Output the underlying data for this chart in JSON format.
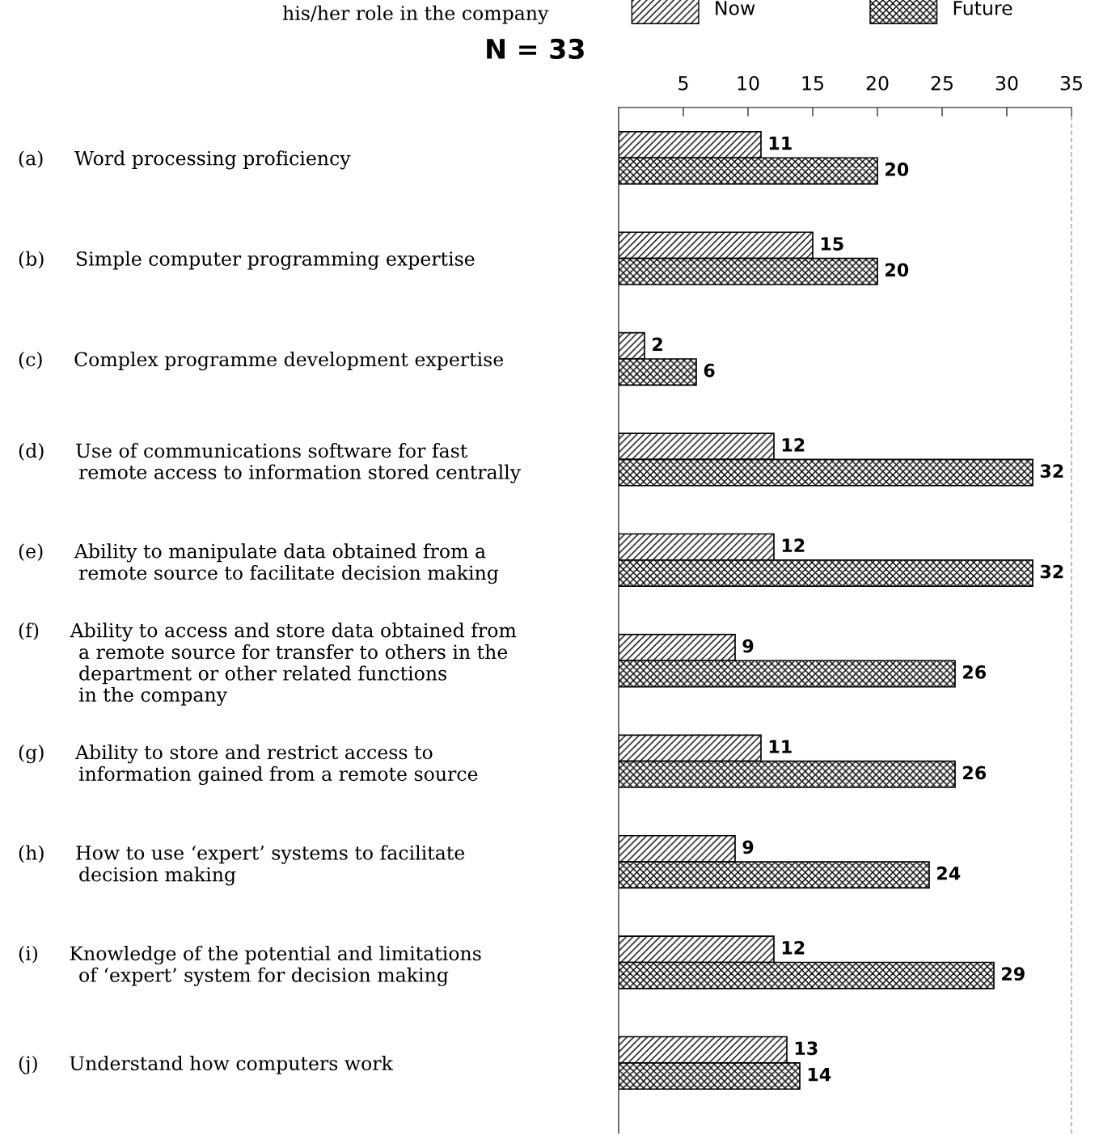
{
  "chart_data": {
    "type": "bar",
    "orientation": "horizontal",
    "title": "his/her role in the company",
    "annotations": [
      "N = 33"
    ],
    "categories": [
      "(a)     Word processing proficiency",
      "(b)     Simple computer programming expertise",
      "(c)     Complex programme development expertise",
      "(d)     Use of communications software for fast\n          remote access to information stored centrally",
      "(e)     Ability to manipulate data obtained from a\n          remote source to facilitate decision making",
      "(f)     Ability to access and store data obtained from\n          a remote source for transfer to others in the\n          department or other related functions\n          in the company",
      "(g)     Ability to store and restrict access to\n          information gained from a remote source",
      "(h)     How to use ‘expert’ systems to facilitate\n          decision making",
      "(i)     Knowledge of the potential and limitations\n          of ‘expert’ system for decision making",
      "(j)     Understand how computers work"
    ],
    "series": [
      {
        "name": "Now",
        "color": "#000000",
        "values": [
          11,
          15,
          2,
          12,
          12,
          9,
          11,
          9,
          12,
          13
        ]
      },
      {
        "name": "Future",
        "color": "#000000",
        "values": [
          20,
          20,
          6,
          32,
          32,
          26,
          26,
          24,
          29,
          14
        ]
      }
    ],
    "xlim": [
      0,
      35
    ],
    "xticks": [
      5,
      10,
      15,
      20,
      25,
      30,
      35
    ],
    "data_labels": true,
    "legend": "top",
    "grid": false
  }
}
